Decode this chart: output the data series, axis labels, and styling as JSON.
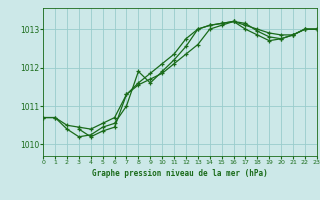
{
  "bg_color": "#cce8e8",
  "grid_color": "#99cccc",
  "line_color": "#1a6b1a",
  "marker_color": "#1a6b1a",
  "title": "Graphe pression niveau de la mer (hPa)",
  "xlim": [
    0,
    23
  ],
  "ylim": [
    1009.7,
    1013.55
  ],
  "xticks": [
    0,
    1,
    2,
    3,
    4,
    5,
    6,
    7,
    8,
    9,
    10,
    11,
    12,
    13,
    14,
    15,
    16,
    17,
    18,
    19,
    20,
    21,
    22,
    23
  ],
  "yticks": [
    1010,
    1011,
    1012,
    1013
  ],
  "series1": {
    "x": [
      0,
      1,
      2,
      3,
      4,
      5,
      6,
      7,
      8,
      9,
      10,
      11,
      12,
      13,
      14,
      15,
      16,
      17,
      18,
      19,
      20,
      21,
      22,
      23
    ],
    "y": [
      1010.7,
      1010.7,
      1010.5,
      1010.45,
      1010.4,
      1010.55,
      1010.7,
      1011.3,
      1011.6,
      1011.85,
      1012.1,
      1012.35,
      1012.75,
      1013.0,
      1013.1,
      1013.15,
      1013.2,
      1013.1,
      1013.0,
      1012.9,
      1012.85,
      1012.85,
      1013.0,
      1013.0
    ]
  },
  "series2": {
    "x": [
      0,
      1,
      2,
      3,
      4,
      5,
      6,
      7,
      8,
      9,
      10,
      11,
      12,
      13,
      14,
      15,
      16,
      17,
      18,
      19,
      20,
      21,
      22,
      23
    ],
    "y": [
      1010.7,
      1010.7,
      1010.4,
      1010.2,
      1010.25,
      1010.45,
      1010.55,
      1011.0,
      1011.9,
      1011.6,
      1011.9,
      1012.2,
      1012.55,
      1013.0,
      1013.1,
      1013.15,
      1013.2,
      1013.0,
      1012.85,
      1012.7,
      1012.75,
      1012.85,
      1013.0,
      1013.0
    ]
  },
  "series3": {
    "x": [
      3,
      4,
      5,
      6,
      7,
      8,
      9,
      10,
      11,
      12,
      13,
      14,
      15,
      16,
      17,
      18,
      19,
      20,
      21,
      22,
      23
    ],
    "y": [
      1010.4,
      1010.2,
      1010.35,
      1010.45,
      1011.3,
      1011.55,
      1011.7,
      1011.85,
      1012.1,
      1012.35,
      1012.6,
      1013.0,
      1013.1,
      1013.2,
      1013.15,
      1012.95,
      1012.8,
      1012.75,
      1012.85,
      1013.0,
      1013.0
    ]
  }
}
